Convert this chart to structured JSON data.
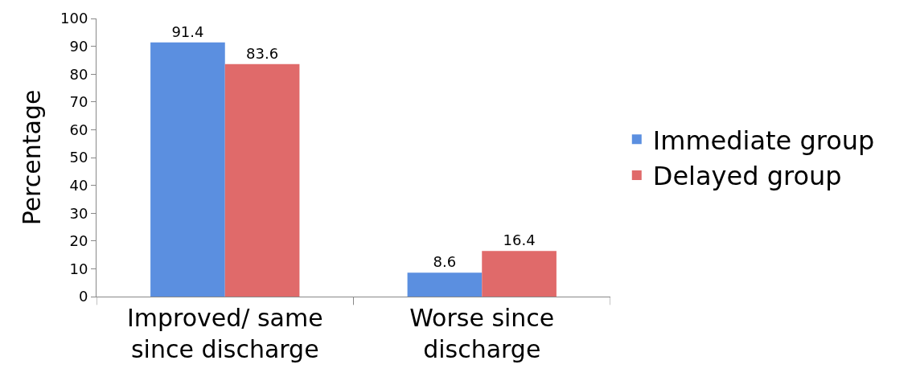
{
  "chart_data": {
    "type": "bar",
    "ylabel": "Percentage",
    "categories": [
      "Improved/ same since discharge",
      "Worse since discharge"
    ],
    "series": [
      {
        "name": "Immediate group",
        "color": "#5b8fe0",
        "values": [
          91.4,
          8.6
        ]
      },
      {
        "name": "Delayed group",
        "color": "#e06a6a",
        "values": [
          83.6,
          16.4
        ]
      }
    ],
    "ylim": [
      0,
      100
    ],
    "yticks": [
      0,
      10,
      20,
      30,
      40,
      50,
      60,
      70,
      80,
      90,
      100
    ],
    "data_labels": true,
    "legend": "right"
  }
}
